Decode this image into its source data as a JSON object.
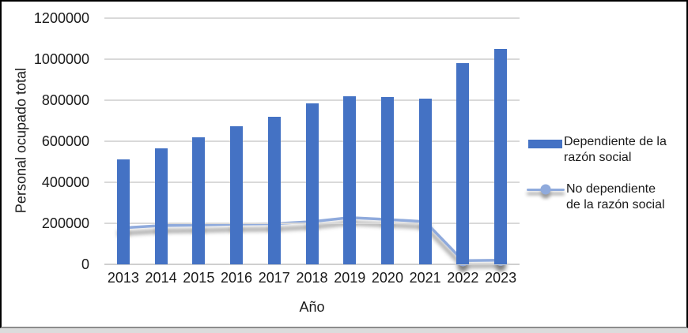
{
  "chart_data": {
    "type": "bar",
    "subtype": "bar-line-combo",
    "title": "",
    "xlabel": "Año",
    "ylabel": "Personal ocupado total",
    "categories": [
      "2013",
      "2014",
      "2015",
      "2016",
      "2017",
      "2018",
      "2019",
      "2020",
      "2021",
      "2022",
      "2023"
    ],
    "series": [
      {
        "name": "Dependiente de la razón social",
        "type": "bar",
        "color": "#4472C4",
        "values": [
          510000,
          565000,
          620000,
          672000,
          719000,
          784000,
          821000,
          815000,
          808000,
          981000,
          1050000
        ]
      },
      {
        "name": "No dependiente de la razón social",
        "type": "line",
        "color": "#8FAADC",
        "values": [
          178000,
          189000,
          191000,
          196000,
          198000,
          208000,
          228000,
          219000,
          208000,
          18000,
          20000
        ]
      }
    ],
    "ylim": [
      0,
      1200000
    ],
    "yticks": [
      0,
      200000,
      400000,
      600000,
      800000,
      1000000,
      1200000
    ],
    "grid": true,
    "legend_position": "right"
  },
  "legend": {
    "items": [
      {
        "label": "Dependiente de la\nrazón social"
      },
      {
        "label": "No dependiente\nde la razón social"
      }
    ]
  },
  "colors": {
    "bar": "#4472C4",
    "line": "#8FAADC",
    "gridline": "#D9D9D9",
    "frame_border": "#000000",
    "bottom_strip": "#DCDCDC",
    "text": "#1A1A1A"
  }
}
